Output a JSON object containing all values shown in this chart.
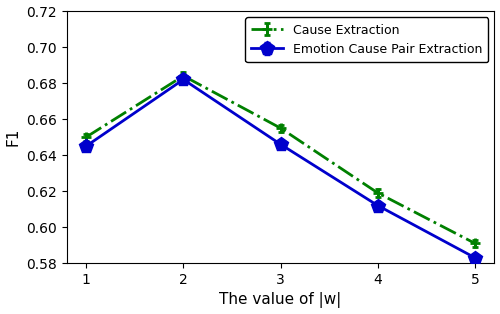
{
  "x": [
    1,
    2,
    3,
    4,
    5
  ],
  "cause_extraction": [
    0.65,
    0.684,
    0.655,
    0.619,
    0.591
  ],
  "emotion_cause_pair": [
    0.645,
    0.682,
    0.646,
    0.612,
    0.583
  ],
  "cause_color": "#008000",
  "pair_color": "#0000cc",
  "xlabel": "The value of |w|",
  "ylabel": "F1",
  "ylim": [
    0.58,
    0.72
  ],
  "yticks": [
    0.58,
    0.6,
    0.62,
    0.64,
    0.66,
    0.68,
    0.7,
    0.72
  ],
  "xticks": [
    1,
    2,
    3,
    4,
    5
  ],
  "legend_cause": "Cause Extraction",
  "legend_pair": "Emotion Cause Pair Extraction",
  "cause_marker": "P",
  "pair_marker": "p",
  "cause_linestyle": "-.",
  "pair_linestyle": "-",
  "cause_markersize": 7,
  "pair_markersize": 10,
  "linewidth": 2.0,
  "error_cause": [
    0.002,
    0.002,
    0.002,
    0.002,
    0.002
  ],
  "error_pair": [
    0.002,
    0.002,
    0.002,
    0.002,
    0.002
  ],
  "figwidth": 5.0,
  "figheight": 3.14,
  "dpi": 100
}
